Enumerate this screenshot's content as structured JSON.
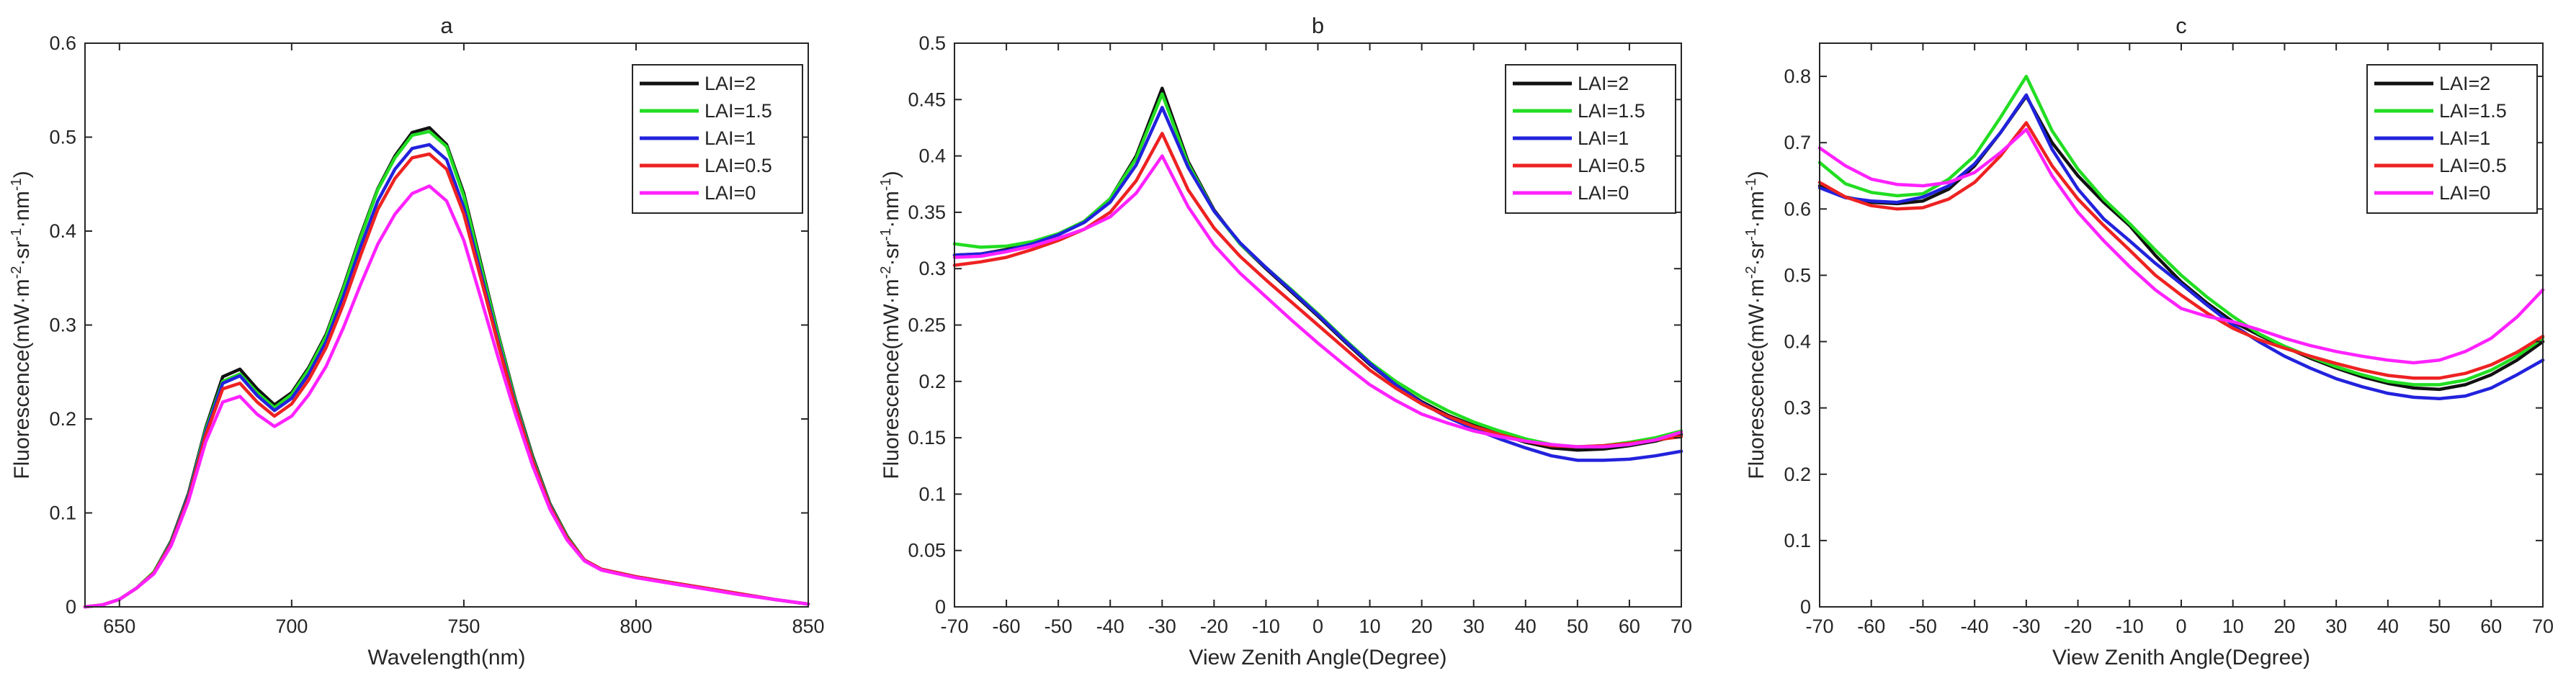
{
  "chart_data": [
    {
      "type": "line",
      "title": "a",
      "xlabel": "Wavelength(nm)",
      "ylabel": "Fluorescence(mW·m⁻²·sr⁻¹·nm⁻¹)",
      "xlim": [
        640,
        850
      ],
      "ylim": [
        0,
        0.6
      ],
      "xticks": [
        650,
        700,
        750,
        800,
        850
      ],
      "xtick_labels": [
        "650",
        "700",
        "750",
        "800",
        "850"
      ],
      "yticks": [
        0,
        0.1,
        0.2,
        0.3,
        0.4,
        0.5,
        0.6
      ],
      "ytick_labels": [
        "0",
        "0.1",
        "0.2",
        "0.3",
        "0.4",
        "0.5",
        "0.6"
      ],
      "legend_position": "top-right",
      "x": [
        640,
        645,
        650,
        655,
        660,
        665,
        670,
        675,
        680,
        685,
        690,
        695,
        700,
        705,
        710,
        715,
        720,
        725,
        730,
        735,
        740,
        745,
        750,
        755,
        760,
        765,
        770,
        775,
        780,
        785,
        790,
        795,
        800,
        810,
        820,
        830,
        840,
        850
      ],
      "series": [
        {
          "name": "LAI=2",
          "color": "#111111",
          "values": [
            0,
            0.002,
            0.008,
            0.02,
            0.037,
            0.07,
            0.12,
            0.19,
            0.245,
            0.253,
            0.232,
            0.215,
            0.228,
            0.255,
            0.29,
            0.34,
            0.395,
            0.445,
            0.48,
            0.505,
            0.51,
            0.492,
            0.44,
            0.365,
            0.29,
            0.22,
            0.16,
            0.11,
            0.075,
            0.05,
            0.04,
            0.036,
            0.032,
            0.026,
            0.02,
            0.014,
            0.008,
            0.003
          ]
        },
        {
          "name": "LAI=1.5",
          "color": "#22dd22",
          "values": [
            0,
            0.002,
            0.008,
            0.02,
            0.037,
            0.069,
            0.118,
            0.188,
            0.24,
            0.248,
            0.228,
            0.212,
            0.226,
            0.253,
            0.288,
            0.338,
            0.393,
            0.444,
            0.478,
            0.502,
            0.506,
            0.49,
            0.437,
            0.362,
            0.288,
            0.218,
            0.158,
            0.109,
            0.074,
            0.05,
            0.04,
            0.036,
            0.032,
            0.026,
            0.02,
            0.014,
            0.008,
            0.003
          ]
        },
        {
          "name": "LAI=1",
          "color": "#2222dd",
          "values": [
            0,
            0.002,
            0.008,
            0.02,
            0.036,
            0.068,
            0.117,
            0.185,
            0.238,
            0.246,
            0.225,
            0.209,
            0.222,
            0.248,
            0.282,
            0.33,
            0.383,
            0.432,
            0.466,
            0.488,
            0.492,
            0.476,
            0.425,
            0.354,
            0.282,
            0.215,
            0.156,
            0.108,
            0.073,
            0.05,
            0.04,
            0.036,
            0.032,
            0.026,
            0.02,
            0.014,
            0.008,
            0.003
          ]
        },
        {
          "name": "LAI=0.5",
          "color": "#ee2222",
          "values": [
            0,
            0.002,
            0.008,
            0.02,
            0.036,
            0.067,
            0.115,
            0.182,
            0.232,
            0.238,
            0.218,
            0.203,
            0.216,
            0.242,
            0.276,
            0.322,
            0.374,
            0.423,
            0.456,
            0.478,
            0.482,
            0.466,
            0.418,
            0.349,
            0.279,
            0.213,
            0.155,
            0.107,
            0.073,
            0.05,
            0.04,
            0.036,
            0.032,
            0.026,
            0.02,
            0.014,
            0.008,
            0.003
          ]
        },
        {
          "name": "LAI=0",
          "color": "#ff22ff",
          "values": [
            0,
            0.002,
            0.008,
            0.02,
            0.035,
            0.065,
            0.112,
            0.175,
            0.218,
            0.224,
            0.205,
            0.192,
            0.203,
            0.226,
            0.256,
            0.297,
            0.343,
            0.386,
            0.418,
            0.44,
            0.448,
            0.432,
            0.39,
            0.328,
            0.265,
            0.205,
            0.15,
            0.104,
            0.071,
            0.049,
            0.039,
            0.035,
            0.031,
            0.025,
            0.019,
            0.013,
            0.008,
            0.003
          ]
        }
      ]
    },
    {
      "type": "line",
      "title": "b",
      "xlabel": "View Zenith Angle(Degree)",
      "ylabel": "Fluorescence(mW·m⁻²·sr⁻¹·nm⁻¹)",
      "xlim": [
        -70,
        70
      ],
      "ylim": [
        0,
        0.5
      ],
      "xticks": [
        -70,
        -60,
        -50,
        -40,
        -30,
        -20,
        -10,
        0,
        10,
        20,
        30,
        40,
        50,
        60,
        70
      ],
      "xtick_labels": [
        "-70",
        "-60",
        "-50",
        "-40",
        "-30",
        "-20",
        "-10",
        "0",
        "10",
        "20",
        "30",
        "40",
        "50",
        "60",
        "70"
      ],
      "yticks": [
        0,
        0.05,
        0.1,
        0.15,
        0.2,
        0.25,
        0.3,
        0.35,
        0.4,
        0.45,
        0.5
      ],
      "ytick_labels": [
        "0",
        "0.05",
        "0.1",
        "0.15",
        "0.2",
        "0.25",
        "0.3",
        "0.35",
        "0.4",
        "0.45",
        "0.5"
      ],
      "legend_position": "top-right",
      "x": [
        -70,
        -65,
        -60,
        -55,
        -50,
        -45,
        -40,
        -35,
        -30,
        -25,
        -20,
        -15,
        -10,
        -5,
        0,
        5,
        10,
        15,
        20,
        25,
        30,
        35,
        40,
        45,
        50,
        55,
        60,
        65,
        70
      ],
      "series": [
        {
          "name": "LAI=2",
          "color": "#111111",
          "values": [
            0.312,
            0.313,
            0.317,
            0.323,
            0.33,
            0.342,
            0.362,
            0.4,
            0.46,
            0.395,
            0.352,
            0.322,
            0.3,
            0.279,
            0.258,
            0.236,
            0.215,
            0.197,
            0.182,
            0.17,
            0.161,
            0.153,
            0.146,
            0.141,
            0.139,
            0.14,
            0.143,
            0.147,
            0.153
          ]
        },
        {
          "name": "LAI=1.5",
          "color": "#22dd22",
          "values": [
            0.322,
            0.319,
            0.32,
            0.324,
            0.331,
            0.342,
            0.362,
            0.398,
            0.455,
            0.393,
            0.351,
            0.322,
            0.301,
            0.281,
            0.26,
            0.238,
            0.217,
            0.2,
            0.186,
            0.174,
            0.164,
            0.156,
            0.149,
            0.144,
            0.142,
            0.143,
            0.146,
            0.15,
            0.156
          ]
        },
        {
          "name": "LAI=1",
          "color": "#2222dd",
          "values": [
            0.312,
            0.313,
            0.316,
            0.322,
            0.33,
            0.341,
            0.359,
            0.392,
            0.443,
            0.39,
            0.351,
            0.323,
            0.301,
            0.28,
            0.259,
            0.237,
            0.216,
            0.197,
            0.181,
            0.168,
            0.158,
            0.149,
            0.141,
            0.134,
            0.13,
            0.13,
            0.131,
            0.134,
            0.138
          ]
        },
        {
          "name": "LAI=0.5",
          "color": "#ee2222",
          "values": [
            0.303,
            0.306,
            0.31,
            0.317,
            0.325,
            0.335,
            0.35,
            0.378,
            0.42,
            0.37,
            0.336,
            0.311,
            0.29,
            0.27,
            0.25,
            0.23,
            0.21,
            0.194,
            0.18,
            0.169,
            0.16,
            0.153,
            0.147,
            0.143,
            0.142,
            0.143,
            0.145,
            0.148,
            0.151
          ]
        },
        {
          "name": "LAI=0",
          "color": "#ff22ff",
          "values": [
            0.31,
            0.311,
            0.315,
            0.32,
            0.327,
            0.335,
            0.346,
            0.367,
            0.4,
            0.355,
            0.321,
            0.296,
            0.275,
            0.254,
            0.234,
            0.215,
            0.197,
            0.183,
            0.171,
            0.163,
            0.156,
            0.151,
            0.147,
            0.144,
            0.142,
            0.142,
            0.144,
            0.148,
            0.155
          ]
        }
      ]
    },
    {
      "type": "line",
      "title": "c",
      "xlabel": "View Zenith Angle(Degree)",
      "ylabel": "Fluorescence(mW·m⁻²·sr⁻¹·nm⁻¹)",
      "xlim": [
        -70,
        70
      ],
      "ylim": [
        0,
        0.85
      ],
      "xticks": [
        -70,
        -60,
        -50,
        -40,
        -30,
        -20,
        -10,
        0,
        10,
        20,
        30,
        40,
        50,
        60,
        70
      ],
      "xtick_labels": [
        "-70",
        "-60",
        "-50",
        "-40",
        "-30",
        "-20",
        "-10",
        "0",
        "10",
        "20",
        "30",
        "40",
        "50",
        "60",
        "70"
      ],
      "yticks": [
        0,
        0.1,
        0.2,
        0.3,
        0.4,
        0.5,
        0.6,
        0.7,
        0.8
      ],
      "ytick_labels": [
        "0",
        "0.1",
        "0.2",
        "0.3",
        "0.4",
        "0.5",
        "0.6",
        "0.7",
        "0.8"
      ],
      "legend_position": "top-right",
      "x": [
        -70,
        -65,
        -60,
        -55,
        -50,
        -45,
        -40,
        -35,
        -30,
        -25,
        -20,
        -15,
        -10,
        -5,
        0,
        5,
        10,
        15,
        20,
        25,
        30,
        35,
        40,
        45,
        50,
        55,
        60,
        65,
        70
      ],
      "series": [
        {
          "name": "LAI=2",
          "color": "#111111",
          "values": [
            0.635,
            0.618,
            0.61,
            0.608,
            0.612,
            0.63,
            0.665,
            0.715,
            0.77,
            0.7,
            0.65,
            0.61,
            0.575,
            0.53,
            0.49,
            0.458,
            0.43,
            0.41,
            0.392,
            0.375,
            0.36,
            0.347,
            0.337,
            0.33,
            0.328,
            0.335,
            0.35,
            0.372,
            0.4
          ]
        },
        {
          "name": "LAI=1.5",
          "color": "#22dd22",
          "values": [
            0.67,
            0.638,
            0.625,
            0.62,
            0.623,
            0.645,
            0.68,
            0.738,
            0.8,
            0.718,
            0.66,
            0.615,
            0.578,
            0.538,
            0.5,
            0.467,
            0.438,
            0.412,
            0.393,
            0.377,
            0.362,
            0.35,
            0.34,
            0.335,
            0.335,
            0.342,
            0.357,
            0.378,
            0.405
          ]
        },
        {
          "name": "LAI=1",
          "color": "#2222dd",
          "values": [
            0.632,
            0.617,
            0.612,
            0.61,
            0.618,
            0.635,
            0.668,
            0.715,
            0.772,
            0.69,
            0.63,
            0.585,
            0.552,
            0.518,
            0.487,
            0.455,
            0.425,
            0.4,
            0.378,
            0.36,
            0.344,
            0.332,
            0.322,
            0.316,
            0.314,
            0.318,
            0.33,
            0.35,
            0.372
          ]
        },
        {
          "name": "LAI=0.5",
          "color": "#ee2222",
          "values": [
            0.64,
            0.618,
            0.605,
            0.6,
            0.602,
            0.615,
            0.64,
            0.68,
            0.73,
            0.665,
            0.615,
            0.575,
            0.538,
            0.5,
            0.47,
            0.443,
            0.42,
            0.403,
            0.39,
            0.378,
            0.367,
            0.357,
            0.349,
            0.345,
            0.345,
            0.352,
            0.365,
            0.384,
            0.408
          ]
        },
        {
          "name": "LAI=0",
          "color": "#ff22ff",
          "values": [
            0.692,
            0.665,
            0.645,
            0.637,
            0.635,
            0.64,
            0.655,
            0.685,
            0.72,
            0.65,
            0.595,
            0.552,
            0.513,
            0.478,
            0.45,
            0.438,
            0.43,
            0.418,
            0.405,
            0.394,
            0.385,
            0.378,
            0.372,
            0.368,
            0.372,
            0.385,
            0.405,
            0.437,
            0.478
          ]
        }
      ]
    }
  ]
}
